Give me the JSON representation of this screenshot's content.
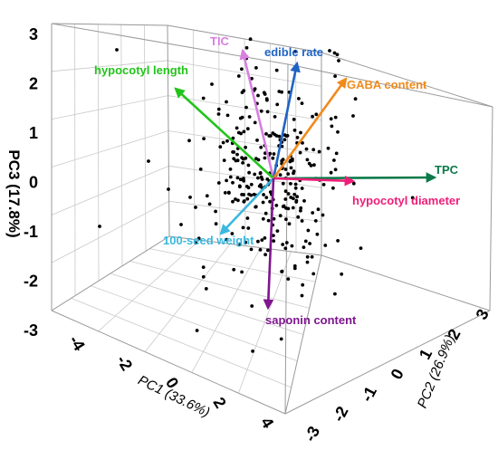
{
  "chart_data": {
    "type": "scatter",
    "subtype": "3d-biplot",
    "title": "",
    "axes": {
      "x": {
        "label": "PC1 (33.6%)",
        "ticks": [
          "-4",
          "-2",
          "0",
          "2",
          "4"
        ]
      },
      "y": {
        "label": "PC2 (26.9%)",
        "ticks": [
          "-3",
          "-2",
          "-1",
          "0",
          "1",
          "2",
          "3"
        ]
      },
      "z": {
        "label": "PC3 (17.8%)",
        "ticks": [
          "-3",
          "-2",
          "-1",
          "0",
          "1",
          "2",
          "3"
        ]
      }
    },
    "zlim": [
      -3,
      3
    ],
    "grid": true,
    "points_color": "#000000",
    "point_count": 300,
    "vectors": [
      {
        "name": "TIC",
        "color": "#d87fe0"
      },
      {
        "name": "edible rate",
        "color": "#1f64c4"
      },
      {
        "name": "hypocotyl length",
        "color": "#22c41a"
      },
      {
        "name": "GABA content",
        "color": "#f08a1c"
      },
      {
        "name": "TPC",
        "color": "#0c7a4a"
      },
      {
        "name": "hypocotyl diameter",
        "color": "#ee1e78"
      },
      {
        "name": "100-seed weight",
        "color": "#3bb8e0"
      },
      {
        "name": "saponin content",
        "color": "#7e168e"
      }
    ]
  }
}
